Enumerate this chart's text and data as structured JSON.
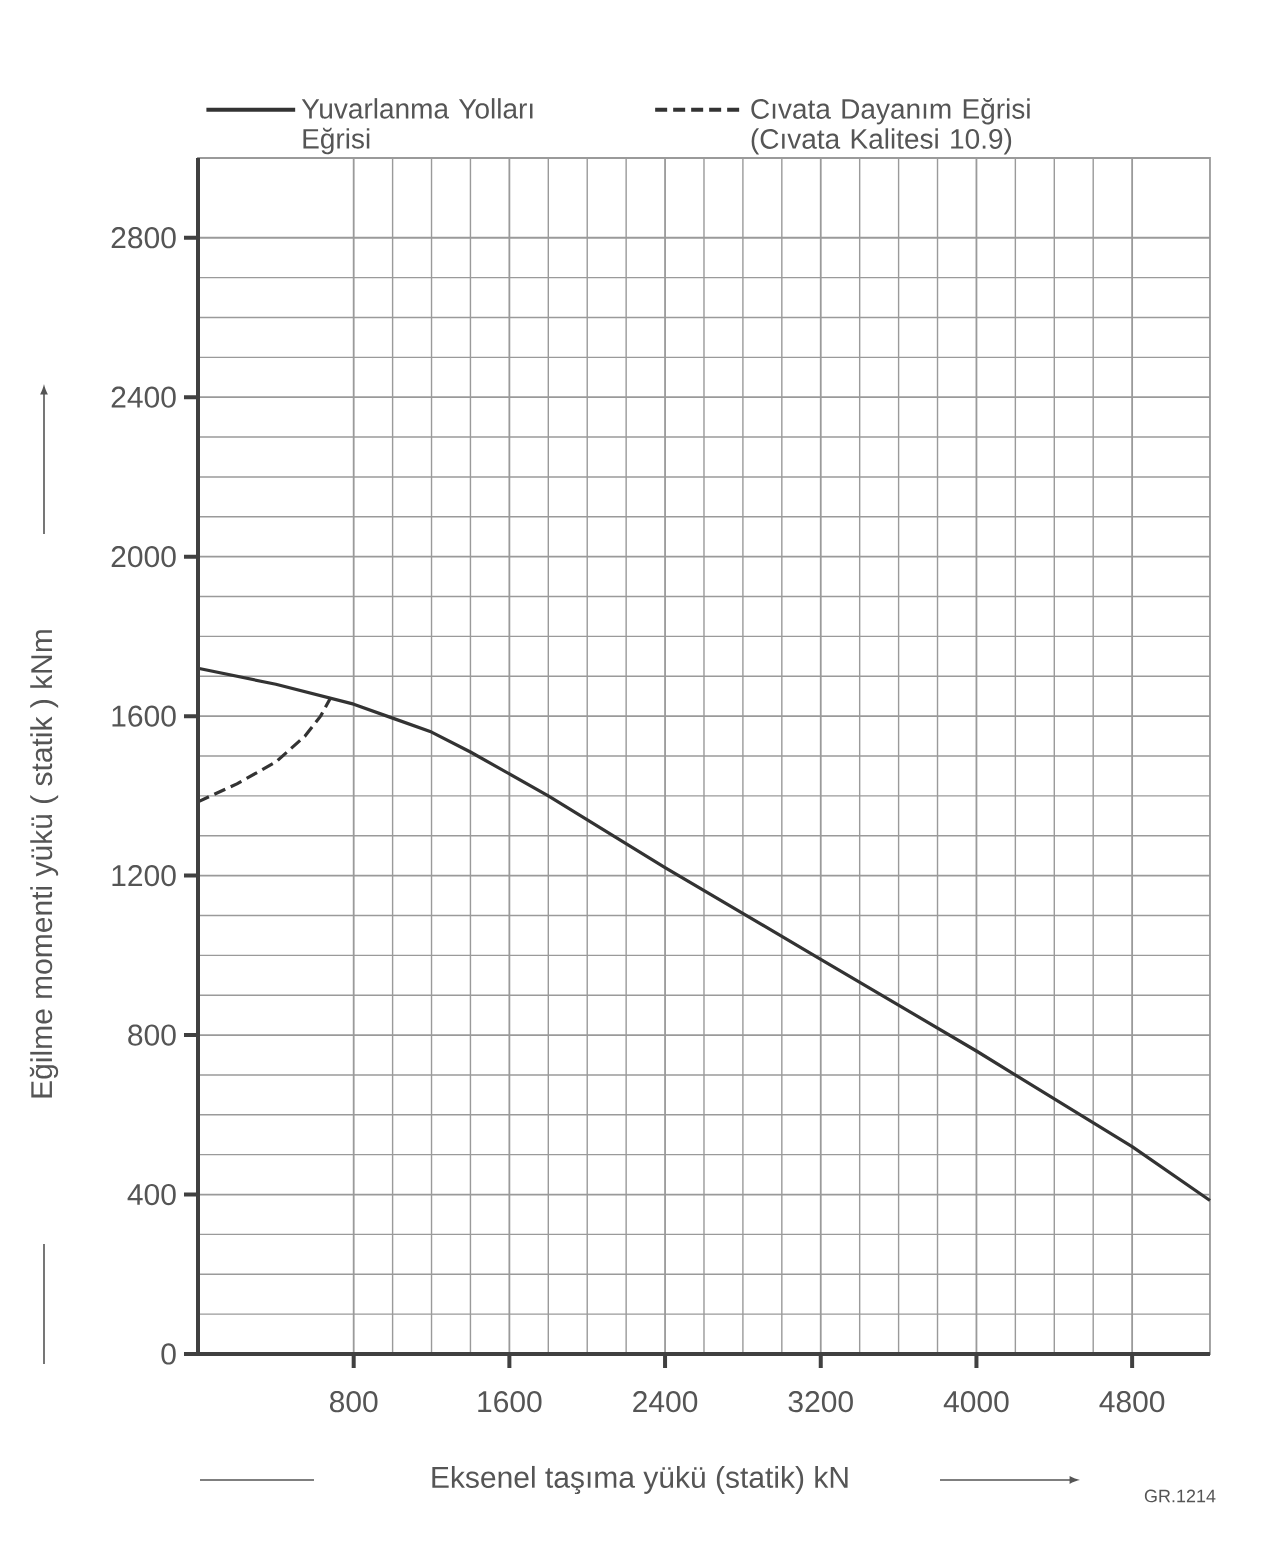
{
  "chart_data": {
    "type": "line",
    "xlabel": "Eksenel taşıma yükü  (statik) kN",
    "ylabel": "Eğilme momenti yükü  ( statik )   kNm",
    "xlim": [
      0,
      5200
    ],
    "ylim": [
      0,
      3000
    ],
    "xticks": [
      800,
      1600,
      2400,
      3200,
      4000,
      4800
    ],
    "yticks": [
      {
        "value": 0,
        "label": "0"
      },
      400,
      800,
      1200,
      1600,
      2000,
      2400,
      2800
    ],
    "grid": true,
    "legend": "top",
    "annotations": [
      "GR.1214"
    ],
    "series": [
      {
        "name": "Yuvarlanma Yolları Eğrisi",
        "color": "#333333",
        "line_style": "solid",
        "x": [
          0,
          400,
          800,
          1000,
          1200,
          1400,
          1800,
          2400,
          3200,
          4000,
          4800,
          5200
        ],
        "values": [
          1720,
          1680,
          1630,
          1595,
          1560,
          1510,
          1400,
          1220,
          990,
          760,
          520,
          385
        ]
      },
      {
        "name": "Cıvata Dayanım Eğrisi (Cıvata Kalitesi 10.9)",
        "color": "#333333",
        "line_style": "dashed",
        "x": [
          0,
          200,
          400,
          550,
          630,
          680
        ],
        "values": [
          1385,
          1430,
          1485,
          1550,
          1600,
          1645
        ]
      }
    ]
  }
}
